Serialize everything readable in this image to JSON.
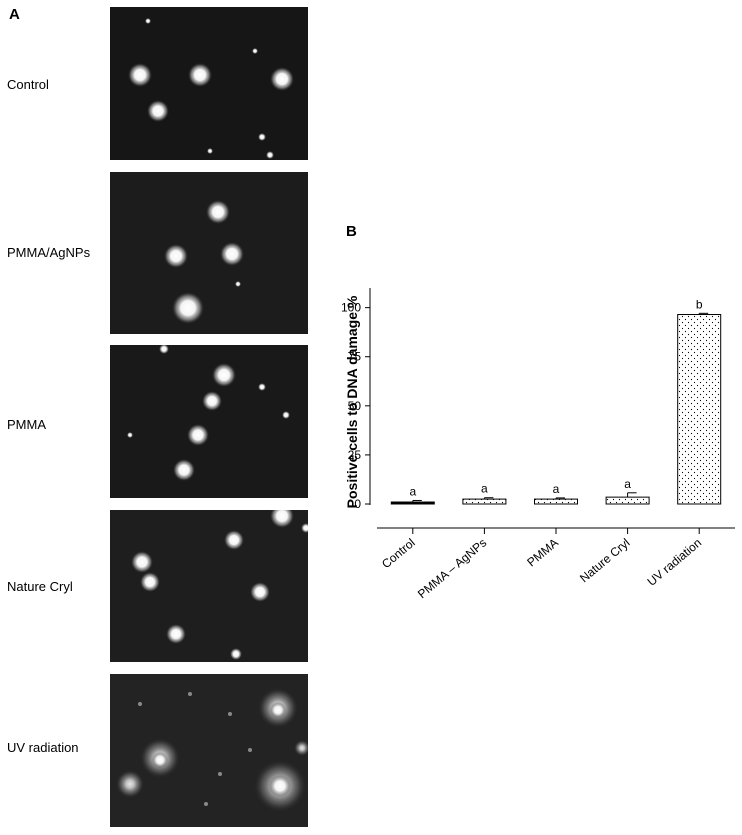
{
  "panel_a": {
    "letter": "A",
    "rows": [
      {
        "label": "Control"
      },
      {
        "label": "PMMA/AgNPs"
      },
      {
        "label": "PMMA"
      },
      {
        "label": "Nature Cryl"
      },
      {
        "label": "UV radiation"
      }
    ]
  },
  "panel_b": {
    "letter": "B"
  },
  "chart_data": {
    "type": "bar",
    "title": "",
    "xlabel": "",
    "ylabel": "Positive cells to DNA damage %",
    "categories": [
      "Control",
      "PMMA – AgNPs",
      "PMMA",
      "Nature Cryl",
      "UV radiation"
    ],
    "values": [
      1,
      2.5,
      2.5,
      3.5,
      96.5
    ],
    "errors": [
      0.8,
      0.7,
      0.6,
      2.2,
      0.6
    ],
    "significance_letters": [
      "a",
      "a",
      "a",
      "a",
      "b"
    ],
    "ylim": [
      0,
      110
    ],
    "yticks": [
      0,
      25,
      50,
      75,
      100
    ],
    "grid": false,
    "bar_fill": "dotted"
  }
}
